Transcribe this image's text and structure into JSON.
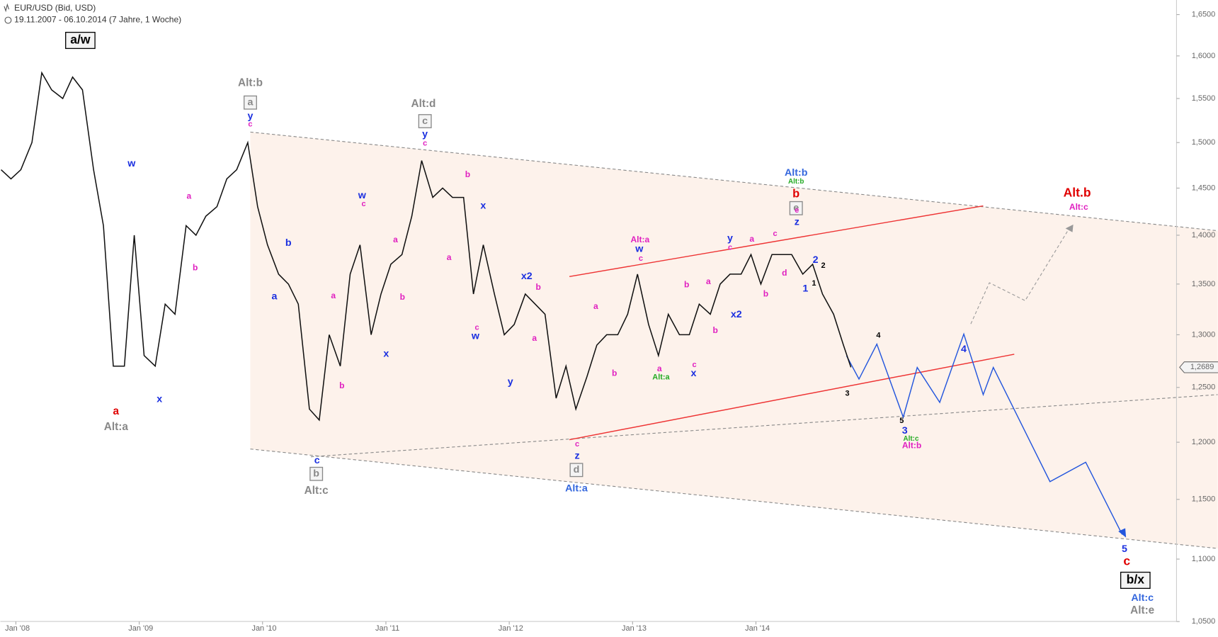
{
  "chart_data": {
    "type": "line",
    "title": "EUR/USD (Bid, USD)",
    "subtitle": "19.11.2007 - 06.10.2014 (7 Jahre, 1 Woche)",
    "log_scale": true,
    "xlim": [
      2007.874,
      2017.41
    ],
    "ylim": [
      1.038,
      1.668
    ],
    "xticks": [
      {
        "value": 2008,
        "label": "Jan '08"
      },
      {
        "value": 2009,
        "label": "Jan '09"
      },
      {
        "value": 2010,
        "label": "Jan '10"
      },
      {
        "value": 2011,
        "label": "Jan '11"
      },
      {
        "value": 2012,
        "label": "Jan '12"
      },
      {
        "value": 2013,
        "label": "Jan '13"
      },
      {
        "value": 2014,
        "label": "Jan '14"
      }
    ],
    "yticks": [
      {
        "value": 1.65,
        "label": "1,6500"
      },
      {
        "value": 1.6,
        "label": "1,6000"
      },
      {
        "value": 1.55,
        "label": "1,5500"
      },
      {
        "value": 1.5,
        "label": "1,5000"
      },
      {
        "value": 1.45,
        "label": "1,4500"
      },
      {
        "value": 1.4,
        "label": "1,4000"
      },
      {
        "value": 1.35,
        "label": "1,3500"
      },
      {
        "value": 1.3,
        "label": "1,3000"
      },
      {
        "value": 1.25,
        "label": "1,2500"
      },
      {
        "value": 1.2,
        "label": "1,2000"
      },
      {
        "value": 1.15,
        "label": "1,1500"
      },
      {
        "value": 1.1,
        "label": "1,1000"
      },
      {
        "value": 1.05,
        "label": "1,0500"
      }
    ],
    "series": [
      {
        "name": "EUR/USD",
        "color": "#111111",
        "x": [
          2007.88,
          2007.96,
          2008.04,
          2008.13,
          2008.21,
          2008.29,
          2008.38,
          2008.46,
          2008.54,
          2008.63,
          2008.71,
          2008.79,
          2008.88,
          2008.96,
          2009.04,
          2009.13,
          2009.21,
          2009.29,
          2009.38,
          2009.46,
          2009.54,
          2009.63,
          2009.71,
          2009.79,
          2009.88,
          2009.96,
          2010.04,
          2010.13,
          2010.21,
          2010.29,
          2010.38,
          2010.46,
          2010.54,
          2010.63,
          2010.71,
          2010.79,
          2010.88,
          2010.96,
          2011.04,
          2011.13,
          2011.21,
          2011.29,
          2011.38,
          2011.46,
          2011.54,
          2011.63,
          2011.71,
          2011.79,
          2011.88,
          2011.96,
          2012.04,
          2012.13,
          2012.21,
          2012.29,
          2012.38,
          2012.46,
          2012.54,
          2012.63,
          2012.71,
          2012.79,
          2012.88,
          2012.96,
          2013.04,
          2013.13,
          2013.21,
          2013.29,
          2013.38,
          2013.46,
          2013.54,
          2013.63,
          2013.71,
          2013.79,
          2013.88,
          2013.96,
          2014.04,
          2014.13,
          2014.21,
          2014.29,
          2014.38,
          2014.46,
          2014.54,
          2014.63,
          2014.71,
          2014.77
        ],
        "values": [
          1.47,
          1.46,
          1.47,
          1.5,
          1.58,
          1.56,
          1.55,
          1.575,
          1.56,
          1.47,
          1.41,
          1.27,
          1.27,
          1.4,
          1.28,
          1.27,
          1.33,
          1.32,
          1.41,
          1.4,
          1.42,
          1.43,
          1.46,
          1.47,
          1.5,
          1.43,
          1.39,
          1.36,
          1.35,
          1.33,
          1.23,
          1.22,
          1.3,
          1.27,
          1.36,
          1.39,
          1.3,
          1.34,
          1.37,
          1.38,
          1.42,
          1.48,
          1.44,
          1.45,
          1.44,
          1.44,
          1.34,
          1.39,
          1.34,
          1.3,
          1.31,
          1.34,
          1.33,
          1.32,
          1.24,
          1.27,
          1.23,
          1.26,
          1.29,
          1.3,
          1.3,
          1.32,
          1.36,
          1.31,
          1.28,
          1.32,
          1.3,
          1.3,
          1.33,
          1.32,
          1.35,
          1.36,
          1.36,
          1.38,
          1.35,
          1.38,
          1.38,
          1.38,
          1.36,
          1.37,
          1.34,
          1.32,
          1.29,
          1.2689
        ]
      }
    ],
    "current_price": {
      "value": 1.2689,
      "label": "1,2689"
    },
    "annotations": [
      {
        "text": "a/w",
        "color": "#000000"
      },
      {
        "text": "a",
        "color": "#e00000"
      },
      {
        "text": "Alt:a",
        "color": "#888888"
      },
      {
        "text": "w",
        "color": "#1a2fe0"
      },
      {
        "text": "x",
        "color": "#1a2fe0"
      },
      {
        "text": "a",
        "color": "#e020c0"
      },
      {
        "text": "b",
        "color": "#e020c0"
      },
      {
        "text": "Alt:b",
        "color": "#888888"
      },
      {
        "text": "a",
        "color": "#888888"
      },
      {
        "text": "y",
        "color": "#1a2fe0"
      },
      {
        "text": "c",
        "color": "#e020c0"
      },
      {
        "text": "b",
        "color": "#1a2fe0"
      },
      {
        "text": "a",
        "color": "#1a2fe0"
      },
      {
        "text": "c",
        "color": "#1a2fe0"
      },
      {
        "text": "b",
        "color": "#888888"
      },
      {
        "text": "Alt:c",
        "color": "#888888"
      },
      {
        "text": "a",
        "color": "#e020c0"
      },
      {
        "text": "b",
        "color": "#e020c0"
      },
      {
        "text": "w",
        "color": "#1a2fe0"
      },
      {
        "text": "c",
        "color": "#e020c0"
      },
      {
        "text": "x",
        "color": "#1a2fe0"
      },
      {
        "text": "a",
        "color": "#e020c0"
      },
      {
        "text": "b",
        "color": "#e020c0"
      },
      {
        "text": "Alt:d",
        "color": "#888888"
      },
      {
        "text": "c",
        "color": "#888888"
      },
      {
        "text": "y",
        "color": "#1a2fe0"
      },
      {
        "text": "c",
        "color": "#e020c0"
      },
      {
        "text": "b",
        "color": "#e020c0"
      },
      {
        "text": "a",
        "color": "#e020c0"
      },
      {
        "text": "x",
        "color": "#1a2fe0"
      },
      {
        "text": "c",
        "color": "#e020c0"
      },
      {
        "text": "w",
        "color": "#1a2fe0"
      },
      {
        "text": "y",
        "color": "#1a2fe0"
      },
      {
        "text": "x2",
        "color": "#1a2fe0"
      },
      {
        "text": "b",
        "color": "#e020c0"
      },
      {
        "text": "a",
        "color": "#e020c0"
      },
      {
        "text": "a",
        "color": "#e020c0"
      },
      {
        "text": "b",
        "color": "#e020c0"
      },
      {
        "text": "Alt:a",
        "color": "#e020c0"
      },
      {
        "text": "w",
        "color": "#1a2fe0"
      },
      {
        "text": "c",
        "color": "#e020c0"
      },
      {
        "text": "c",
        "color": "#e020c0"
      },
      {
        "text": "z",
        "color": "#1a2fe0"
      },
      {
        "text": "d",
        "color": "#888888"
      },
      {
        "text": "Alt:a",
        "color": "#3366dd"
      },
      {
        "text": "a",
        "color": "#e020c0"
      },
      {
        "text": "Alt:a",
        "color": "#22aa22"
      },
      {
        "text": "b",
        "color": "#e020c0"
      },
      {
        "text": "a",
        "color": "#e020c0"
      },
      {
        "text": "b",
        "color": "#e020c0"
      },
      {
        "text": "c",
        "color": "#e020c0"
      },
      {
        "text": "x",
        "color": "#1a2fe0"
      },
      {
        "text": "x2",
        "color": "#1a2fe0"
      },
      {
        "text": "y",
        "color": "#1a2fe0"
      },
      {
        "text": "c",
        "color": "#e020c0"
      },
      {
        "text": "a",
        "color": "#e020c0"
      },
      {
        "text": "b",
        "color": "#e020c0"
      },
      {
        "text": "c",
        "color": "#e020c0"
      },
      {
        "text": "d",
        "color": "#e020c0"
      },
      {
        "text": "Alt:b",
        "color": "#3366dd"
      },
      {
        "text": "Alt:b",
        "color": "#22aa22"
      },
      {
        "text": "b",
        "color": "#e00000"
      },
      {
        "text": "e",
        "color": "#888888"
      },
      {
        "text": "e",
        "color": "#e020c0"
      },
      {
        "text": "z",
        "color": "#1a2fe0"
      },
      {
        "text": "2",
        "color": "#1a2fe0"
      },
      {
        "text": "2",
        "color": "#000000"
      },
      {
        "text": "1",
        "color": "#000000"
      },
      {
        "text": "1",
        "color": "#1a2fe0"
      },
      {
        "text": "4",
        "color": "#000000"
      },
      {
        "text": "3",
        "color": "#000000"
      },
      {
        "text": "5",
        "color": "#000000"
      },
      {
        "text": "3",
        "color": "#1a2fe0"
      },
      {
        "text": "Alt:c",
        "color": "#22aa22"
      },
      {
        "text": "Alt:b",
        "color": "#e020c0"
      },
      {
        "text": "4",
        "color": "#1a2fe0"
      },
      {
        "text": "Alt.b",
        "color": "#e00000"
      },
      {
        "text": "Alt:c",
        "color": "#e020c0"
      },
      {
        "text": "5",
        "color": "#1a2fe0"
      },
      {
        "text": "c",
        "color": "#e00000"
      },
      {
        "text": "b/x",
        "color": "#000000"
      },
      {
        "text": "Alt:c",
        "color": "#3366dd"
      },
      {
        "text": "Alt:e",
        "color": "#888888"
      }
    ]
  }
}
